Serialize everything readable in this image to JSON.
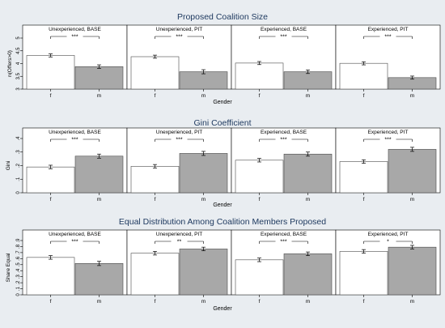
{
  "theme": {
    "background": "#e9edf1",
    "plot_background": "#ffffff",
    "title_color": "#1f3a60",
    "axis_color": "#000000",
    "bar_female_fill": "#ffffff",
    "bar_male_fill": "#a8a8a8",
    "bar_outline": "#4a4a4a"
  },
  "chart_data": [
    {
      "type": "bar",
      "title": "Proposed Coalition Size",
      "xlabel": "Gender",
      "ylabel": "n(Offers>0)",
      "ylim": [
        3,
        5
      ],
      "yticks": [
        "3",
        "3.5",
        "4",
        "4.5",
        "5"
      ],
      "ytick_values": [
        3,
        3.5,
        4,
        4.5,
        5
      ],
      "grid": false,
      "categories": [
        "f",
        "m"
      ],
      "panels": [
        {
          "label": "Unexperienced, BASE",
          "values": [
            4.32,
            3.88
          ],
          "errors": [
            0.06,
            0.07
          ],
          "significance": "***"
        },
        {
          "label": "Unexperienced, PIT",
          "values": [
            4.27,
            3.68
          ],
          "errors": [
            0.06,
            0.08
          ],
          "significance": "***"
        },
        {
          "label": "Experienced, BASE",
          "values": [
            4.02,
            3.68
          ],
          "errors": [
            0.06,
            0.07
          ],
          "significance": "***"
        },
        {
          "label": "Experienced, PIT",
          "values": [
            4.01,
            3.45
          ],
          "errors": [
            0.06,
            0.06
          ],
          "significance": "***"
        }
      ]
    },
    {
      "type": "bar",
      "title": "Gini Coefficient",
      "xlabel": "Gender",
      "ylabel": "Gini",
      "ylim": [
        0,
        0.4
      ],
      "yticks": [
        "0",
        ".1",
        ".2",
        ".3",
        ".4"
      ],
      "ytick_values": [
        0,
        0.1,
        0.2,
        0.3,
        0.4
      ],
      "grid": false,
      "categories": [
        "f",
        "m"
      ],
      "panels": [
        {
          "label": "Unexperienced, BASE",
          "values": [
            0.19,
            0.27
          ],
          "errors": [
            0.013,
            0.015
          ],
          "significance": "***"
        },
        {
          "label": "Unexperienced, PIT",
          "values": [
            0.195,
            0.29
          ],
          "errors": [
            0.013,
            0.015
          ],
          "significance": "***"
        },
        {
          "label": "Experienced, BASE",
          "values": [
            0.24,
            0.285
          ],
          "errors": [
            0.013,
            0.015
          ],
          "significance": "***"
        },
        {
          "label": "Experienced, PIT",
          "values": [
            0.23,
            0.32
          ],
          "errors": [
            0.013,
            0.015
          ],
          "significance": "***"
        }
      ]
    },
    {
      "type": "bar",
      "title": "Equal Distribution Among Coalition Members Proposed",
      "xlabel": "Gender",
      "ylabel": "Share Equal",
      "ylim": [
        0,
        0.9
      ],
      "yticks": [
        "0",
        ".1",
        ".2",
        ".3",
        ".4",
        ".5",
        ".6",
        ".7",
        ".8",
        ".9"
      ],
      "ytick_values": [
        0,
        0.1,
        0.2,
        0.3,
        0.4,
        0.5,
        0.6,
        0.7,
        0.8,
        0.9
      ],
      "grid": false,
      "categories": [
        "f",
        "m"
      ],
      "panels": [
        {
          "label": "Unexperienced, BASE",
          "values": [
            0.62,
            0.52
          ],
          "errors": [
            0.03,
            0.035
          ],
          "significance": "***"
        },
        {
          "label": "Unexperienced, PIT",
          "values": [
            0.69,
            0.76
          ],
          "errors": [
            0.03,
            0.03
          ],
          "significance": "**"
        },
        {
          "label": "Experienced, BASE",
          "values": [
            0.58,
            0.68
          ],
          "errors": [
            0.03,
            0.03
          ],
          "significance": "***"
        },
        {
          "label": "Experienced, PIT",
          "values": [
            0.72,
            0.79
          ],
          "errors": [
            0.03,
            0.03
          ],
          "significance": "*"
        }
      ]
    }
  ]
}
